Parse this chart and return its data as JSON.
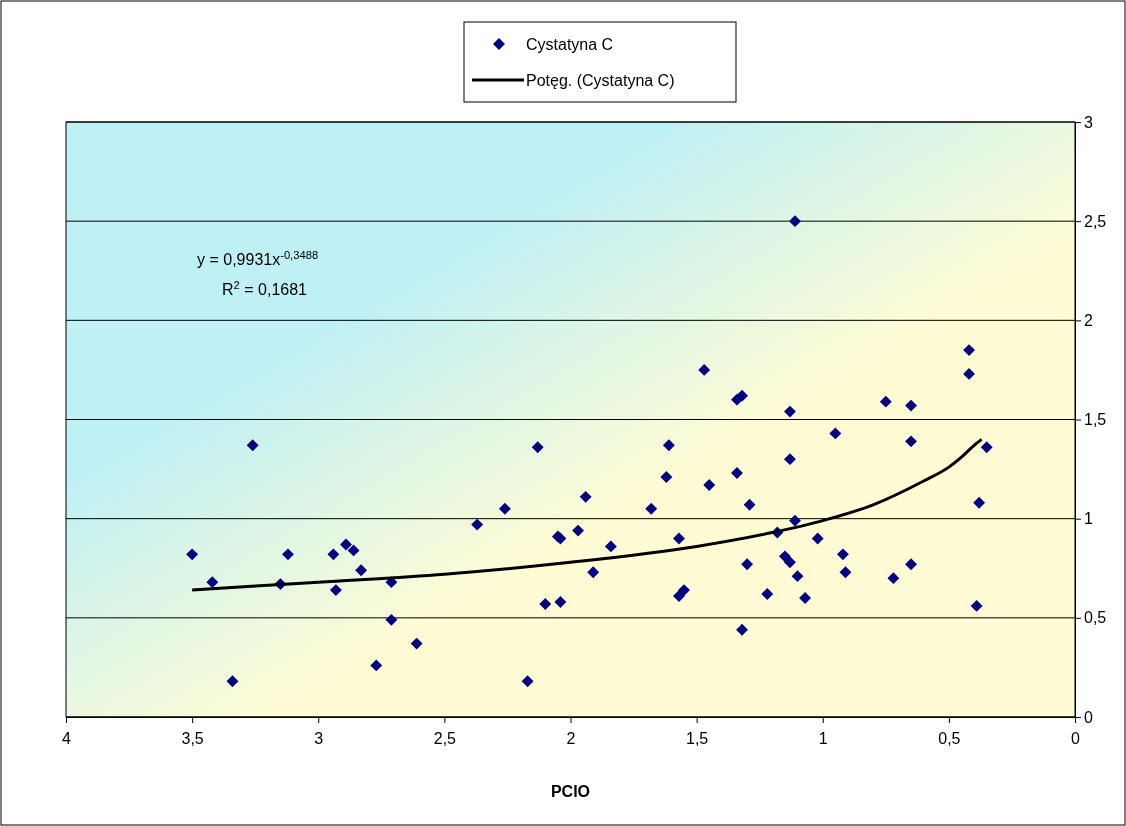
{
  "chart_data": {
    "type": "scatter",
    "xlabel": "PCIO",
    "xlim": [
      4,
      0
    ],
    "ylim": [
      0,
      3
    ],
    "xticks": [
      4,
      {
        "value": 3.5,
        "label": "3,5"
      },
      3,
      {
        "value": 2.5,
        "label": "2,5"
      },
      2,
      {
        "value": 1.5,
        "label": "1,5"
      },
      1,
      {
        "value": 0.5,
        "label": "0,5"
      },
      0
    ],
    "yticks": [
      0,
      {
        "value": 0.5,
        "label": "0,5"
      },
      1,
      {
        "value": 1.5,
        "label": "1,5"
      },
      2,
      {
        "value": 2.5,
        "label": "2,5"
      },
      3
    ],
    "grid": "y",
    "legend": "top",
    "marker": "diamond",
    "annotations": [
      "y = 0,9931x$^{-0,3488}$",
      "R$^{2}$ = 0,1681"
    ],
    "series": [
      {
        "name": "Cystatyna C",
        "color": "#000080",
        "x": [
          3.5,
          3.42,
          3.34,
          3.26,
          3.15,
          3.12,
          2.94,
          2.93,
          2.89,
          2.86,
          2.83,
          2.77,
          2.71,
          2.71,
          2.61,
          2.37,
          2.26,
          2.13,
          2.17,
          2.1,
          2.05,
          2.04,
          2.04,
          1.97,
          1.94,
          1.91,
          1.84,
          1.68,
          1.62,
          1.61,
          1.57,
          1.57,
          1.55,
          1.47,
          1.45,
          1.34,
          1.32,
          1.34,
          1.32,
          1.3,
          1.29,
          1.22,
          1.18,
          1.15,
          1.13,
          1.13,
          1.13,
          1.11,
          1.11,
          1.1,
          1.07,
          1.02,
          0.95,
          0.92,
          0.91,
          0.75,
          0.72,
          0.65,
          0.65,
          0.65,
          0.42,
          0.42,
          0.39,
          0.38,
          0.35
        ],
        "values": [
          0.82,
          0.68,
          0.18,
          1.37,
          0.67,
          0.82,
          0.82,
          0.64,
          0.87,
          0.84,
          0.74,
          0.26,
          0.68,
          0.49,
          0.37,
          0.97,
          1.05,
          1.36,
          0.18,
          0.57,
          0.91,
          0.9,
          0.58,
          0.94,
          1.11,
          0.73,
          0.86,
          1.05,
          1.21,
          1.37,
          0.9,
          0.61,
          0.64,
          1.75,
          1.17,
          1.6,
          1.62,
          1.23,
          0.44,
          0.77,
          1.07,
          0.62,
          0.93,
          0.81,
          0.78,
          1.54,
          1.3,
          0.99,
          2.5,
          0.71,
          0.6,
          0.9,
          1.43,
          0.82,
          0.73,
          1.59,
          0.7,
          1.39,
          1.57,
          0.77,
          1.85,
          1.73,
          0.56,
          1.08,
          1.36
        ]
      },
      {
        "name": "Potęg. (Cystatyna C)",
        "type": "line",
        "color": "#000000",
        "line_style": "solid",
        "marker": "none",
        "x": [
          3.5,
          3,
          2.5,
          2,
          1.5,
          1.2,
          1,
          0.8,
          0.6,
          0.5,
          0.45,
          0.4,
          0.37
        ],
        "values": [
          0.64,
          0.68,
          0.72,
          0.78,
          0.86,
          0.93,
          0.99,
          1.07,
          1.19,
          1.26,
          1.31,
          1.37,
          1.4
        ]
      }
    ]
  }
}
